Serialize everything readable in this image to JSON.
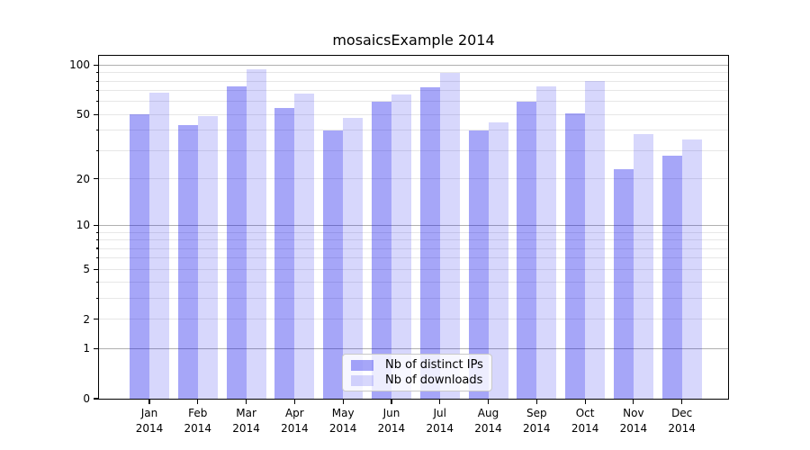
{
  "chart_data": {
    "type": "bar",
    "title": "mosaicsExample 2014",
    "categories": [
      "Jan 2014",
      "Feb 2014",
      "Mar 2014",
      "Apr 2014",
      "May 2014",
      "Jun 2014",
      "Jul 2014",
      "Aug 2014",
      "Sep 2014",
      "Oct 2014",
      "Nov 2014",
      "Dec 2014"
    ],
    "series": [
      {
        "name": "Nb of distinct IPs",
        "color": "rgba(8,8,235,0.36)",
        "values": [
          50,
          43,
          74,
          55,
          40,
          60,
          73,
          40,
          60,
          51,
          23,
          28
        ]
      },
      {
        "name": "Nb of downloads",
        "color": "rgba(8,8,235,0.16)",
        "values": [
          68,
          49,
          94,
          67,
          48,
          66,
          90,
          45,
          74,
          80,
          38,
          35
        ]
      }
    ],
    "xlabel": "",
    "ylabel": "",
    "yscale": "log1p",
    "ylim": [
      0,
      114
    ],
    "yticks": [
      0,
      1,
      2,
      5,
      10,
      20,
      50,
      100
    ],
    "gridlines": {
      "major": [
        1,
        10,
        100
      ],
      "minor": [
        2,
        3,
        4,
        5,
        6,
        7,
        8,
        9,
        20,
        30,
        40,
        50,
        60,
        70,
        80,
        90
      ]
    },
    "grid": true,
    "legend_position": "lower center"
  },
  "colors": {
    "background": "#ffffff",
    "axis": "#000000",
    "text": "#000000",
    "major_grid": "#b0b0b0",
    "minor_grid": "#e7e7e7",
    "bar_distinct_ips": "rgba(8,8,235,0.36)",
    "bar_downloads": "rgba(8,8,235,0.16)",
    "legend_border": "#c9c9c9"
  }
}
